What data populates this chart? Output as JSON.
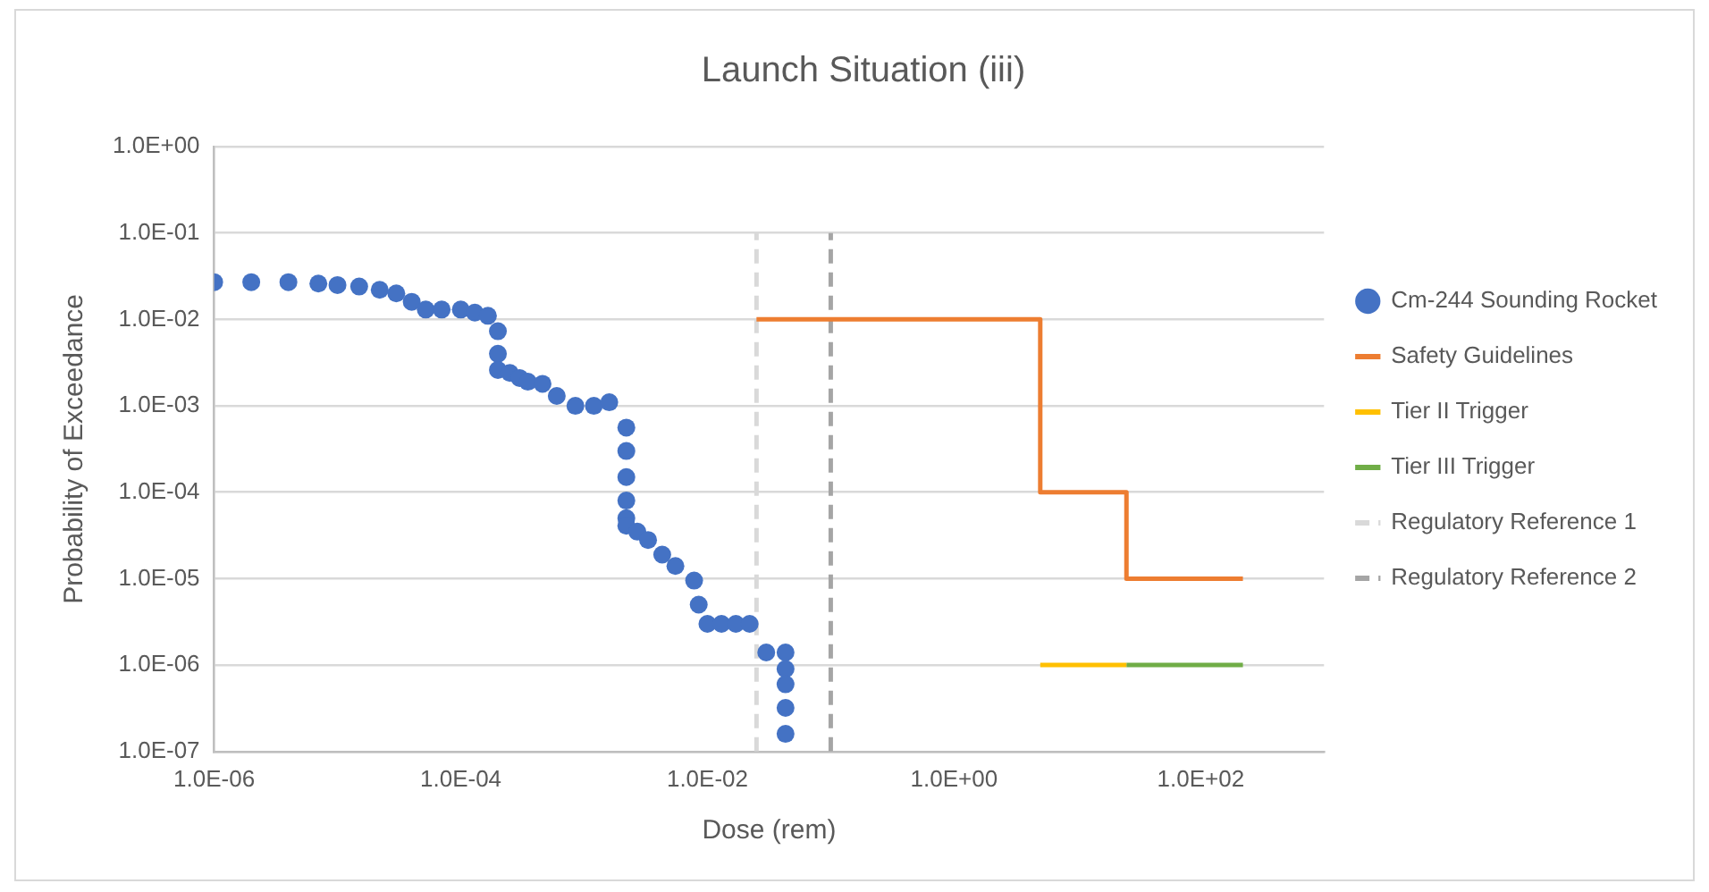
{
  "chart_data": {
    "type": "scatter",
    "title": "Launch Situation (iii)",
    "xlabel": "Dose (rem)",
    "ylabel": "Probability of Exceedance",
    "log": "xy",
    "grid": "y",
    "legend": "right",
    "xlim": [
      1e-06,
      1000
    ],
    "ylim": [
      1e-07,
      1
    ],
    "xticks": [
      {
        "value": 1e-06,
        "label": "1.0E-06"
      },
      {
        "value": 0.0001,
        "label": "1.0E-04"
      },
      {
        "value": 0.01,
        "label": "1.0E-02"
      },
      {
        "value": 1,
        "label": "1.0E+00"
      },
      {
        "value": 100,
        "label": "1.0E+02"
      }
    ],
    "yticks": [
      {
        "value": 1e-07,
        "label": "1.0E-07"
      },
      {
        "value": 1e-06,
        "label": "1.0E-06"
      },
      {
        "value": 1e-05,
        "label": "1.0E-05"
      },
      {
        "value": 0.0001,
        "label": "1.0E-04"
      },
      {
        "value": 0.001,
        "label": "1.0E-03"
      },
      {
        "value": 0.01,
        "label": "1.0E-02"
      },
      {
        "value": 0.1,
        "label": "1.0E-01"
      },
      {
        "value": 1,
        "label": "1.0E+00"
      }
    ],
    "series": [
      {
        "name": "Cm-244 Sounding Rocket",
        "marker": "circle",
        "color": "#4472c4",
        "x": [
          1e-06,
          2e-06,
          4e-06,
          7e-06,
          1e-05,
          1.5e-05,
          2.2e-05,
          3e-05,
          4e-05,
          5.2e-05,
          7e-05,
          0.0001,
          0.00013,
          0.000166,
          0.0002,
          0.0002,
          0.0002,
          0.00025,
          0.0003,
          0.00035,
          0.00046,
          0.0006,
          0.00085,
          0.0012,
          0.0016,
          0.0022,
          0.0022,
          0.0022,
          0.0022,
          0.0022,
          0.0022,
          0.0027,
          0.0033,
          0.0043,
          0.0055,
          0.0078,
          0.0085,
          0.01,
          0.013,
          0.017,
          0.022,
          0.03,
          0.043,
          0.043,
          0.043,
          0.043,
          0.043
        ],
        "values": [
          0.027,
          0.027,
          0.027,
          0.026,
          0.025,
          0.024,
          0.022,
          0.02,
          0.016,
          0.013,
          0.013,
          0.013,
          0.012,
          0.011,
          0.0073,
          0.004,
          0.0026,
          0.0024,
          0.0021,
          0.0019,
          0.0018,
          0.0013,
          0.001,
          0.001,
          0.0011,
          0.00056,
          0.0003,
          0.00015,
          8e-05,
          5e-05,
          4.1e-05,
          3.5e-05,
          2.8e-05,
          1.9e-05,
          1.4e-05,
          9.5e-06,
          5e-06,
          3e-06,
          3e-06,
          3e-06,
          3e-06,
          1.4e-06,
          1.4e-06,
          9e-07,
          6e-07,
          3.2e-07,
          1.6e-07
        ]
      },
      {
        "name": "Safety Guidelines",
        "type": "line",
        "marker": "none",
        "line_style": "solid",
        "color": "#ed7d31",
        "x": [
          0.025,
          5,
          5,
          25,
          25,
          220
        ],
        "values": [
          0.01,
          0.01,
          0.0001,
          0.0001,
          1e-05,
          1e-05
        ]
      },
      {
        "name": "Tier II Trigger",
        "type": "line",
        "marker": "none",
        "line_style": "solid",
        "color": "#ffc000",
        "x": [
          5,
          25
        ],
        "values": [
          1e-06,
          1e-06
        ]
      },
      {
        "name": "Tier III Trigger",
        "type": "line",
        "marker": "none",
        "line_style": "solid",
        "color": "#70ad47",
        "x": [
          25,
          220
        ],
        "values": [
          1e-06,
          1e-06
        ]
      },
      {
        "name": "Regulatory Reference 1",
        "type": "line",
        "marker": "none",
        "line_style": "dashed",
        "color": "#d9d9d9",
        "x": [
          0.025,
          0.025
        ],
        "values": [
          1e-07,
          0.1
        ]
      },
      {
        "name": "Regulatory Reference 2",
        "type": "line",
        "marker": "none",
        "line_style": "dashed",
        "color": "#a5a5a5",
        "x": [
          0.1,
          0.1
        ],
        "values": [
          1e-07,
          0.1
        ]
      }
    ]
  }
}
